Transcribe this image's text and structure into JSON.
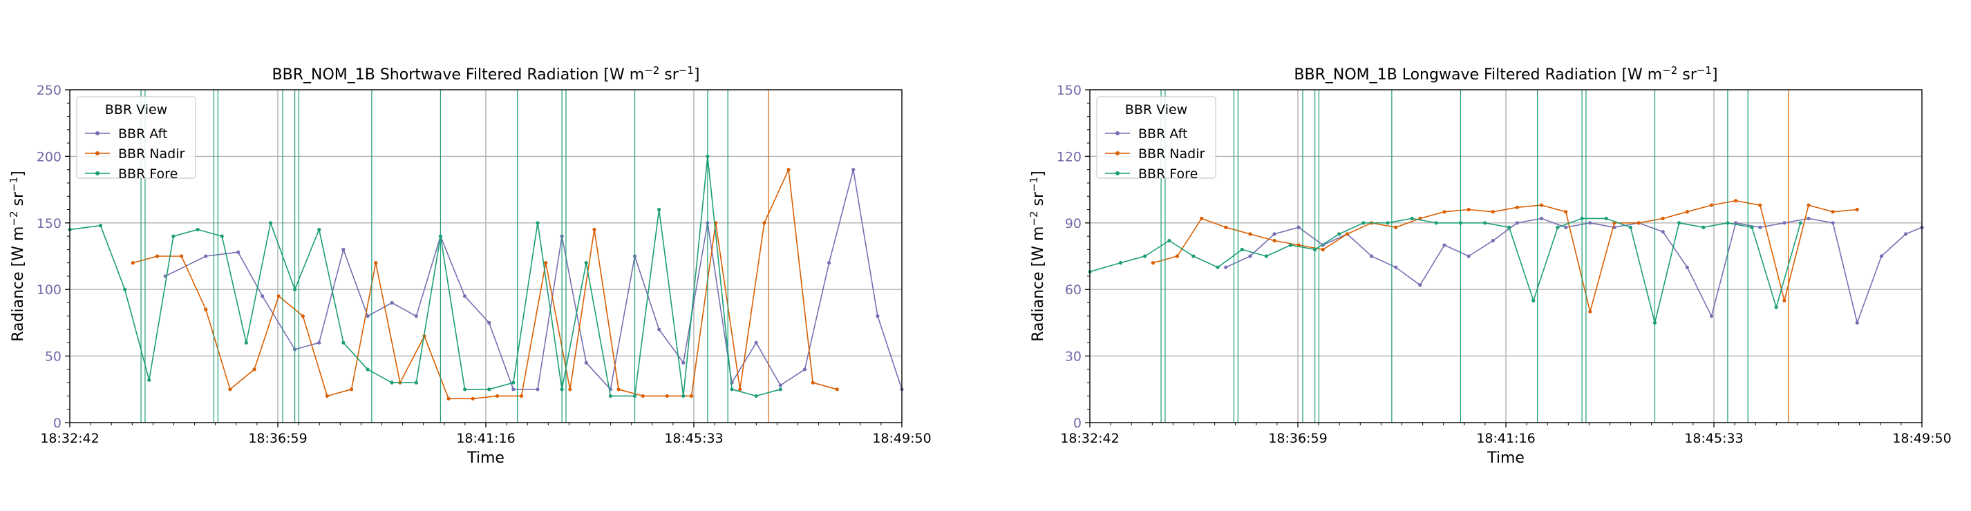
{
  "chart_data": [
    {
      "type": "line",
      "title_main": "BBR_NOM_1B Shortwave Filtered Radiation [W m",
      "title_sup1": "−2",
      "title_mid": " sr",
      "title_sup2": "−1",
      "title_end": "]",
      "xlabel": "Time",
      "ylabel_main": "Radiance [W m",
      "ylabel_sup1": "−2",
      "ylabel_mid": " sr",
      "ylabel_sup2": "−1",
      "ylabel_end": "]",
      "xlim": [
        "18:32:42",
        "18:49:50"
      ],
      "x_tick_labels": [
        "18:32:42",
        "18:36:59",
        "18:41:16",
        "18:45:33",
        "18:49:50"
      ],
      "ylim": [
        0,
        250
      ],
      "y_ticks": [
        0,
        50,
        100,
        150,
        200,
        250
      ],
      "grid": true,
      "legend": {
        "title": "BBR View",
        "placement": "top-left"
      },
      "series": [
        {
          "name": "BBR Aft",
          "color": "#7570b3",
          "x": [
            "18:34:40",
            "18:35:30",
            "18:36:10",
            "18:36:40",
            "18:37:20",
            "18:37:50",
            "18:38:20",
            "18:38:50",
            "18:39:20",
            "18:39:50",
            "18:40:20",
            "18:40:50",
            "18:41:20",
            "18:41:50",
            "18:42:20",
            "18:42:50",
            "18:43:20",
            "18:43:50",
            "18:44:20",
            "18:44:50",
            "18:45:20",
            "18:45:50",
            "18:46:20",
            "18:46:50",
            "18:47:20",
            "18:47:50",
            "18:48:20",
            "18:48:50",
            "18:49:20",
            "18:49:50"
          ],
          "values": [
            110,
            125,
            128,
            95,
            55,
            60,
            130,
            80,
            90,
            80,
            140,
            95,
            75,
            25,
            25,
            140,
            45,
            25,
            125,
            70,
            45,
            150,
            30,
            60,
            28,
            40,
            120,
            190,
            80,
            25
          ],
          "spikes": []
        },
        {
          "name": "BBR Nadir",
          "color": "#d95f02",
          "x": [
            "18:34:00",
            "18:34:30",
            "18:35:00",
            "18:35:30",
            "18:36:00",
            "18:36:30",
            "18:37:00",
            "18:37:30",
            "18:38:00",
            "18:38:30",
            "18:39:00",
            "18:39:30",
            "18:40:00",
            "18:40:30",
            "18:41:00",
            "18:41:30",
            "18:42:00",
            "18:42:30",
            "18:43:00",
            "18:43:30",
            "18:44:00",
            "18:44:30",
            "18:45:00",
            "18:45:30",
            "18:46:00",
            "18:46:30",
            "18:47:00",
            "18:47:30",
            "18:48:00",
            "18:48:30"
          ],
          "values": [
            120,
            125,
            125,
            85,
            25,
            40,
            95,
            80,
            20,
            25,
            120,
            30,
            65,
            18,
            18,
            20,
            20,
            120,
            25,
            145,
            25,
            20,
            20,
            20,
            150,
            25,
            150,
            190,
            30,
            25
          ],
          "spikes": [
            "18:47:05"
          ]
        },
        {
          "name": "BBR Fore",
          "color": "#1b9e77",
          "x": [
            "18:32:42",
            "18:33:20",
            "18:33:50",
            "18:34:20",
            "18:34:50",
            "18:35:20",
            "18:35:50",
            "18:36:20",
            "18:36:50",
            "18:37:20",
            "18:37:50",
            "18:38:20",
            "18:38:50",
            "18:39:20",
            "18:39:50",
            "18:40:20",
            "18:40:50",
            "18:41:20",
            "18:41:50",
            "18:42:20",
            "18:42:50",
            "18:43:20",
            "18:43:50",
            "18:44:20",
            "18:44:50",
            "18:45:20",
            "18:45:50",
            "18:46:20",
            "18:46:50",
            "18:47:20"
          ],
          "values": [
            145,
            148,
            100,
            32,
            140,
            145,
            140,
            60,
            150,
            100,
            145,
            60,
            40,
            30,
            30,
            140,
            25,
            25,
            30,
            150,
            25,
            120,
            20,
            20,
            160,
            20,
            200,
            25,
            20,
            25
          ],
          "spikes": [
            "18:34:10",
            "18:34:15",
            "18:35:40",
            "18:35:45",
            "18:37:05",
            "18:37:20",
            "18:37:25",
            "18:38:55",
            "18:40:20",
            "18:41:55",
            "18:42:50",
            "18:42:55",
            "18:44:20",
            "18:45:50",
            "18:46:15"
          ]
        }
      ]
    },
    {
      "type": "line",
      "title_main": "BBR_NOM_1B Longwave Filtered Radiation [W m",
      "title_sup1": "−2",
      "title_mid": " sr",
      "title_sup2": "−1",
      "title_end": "]",
      "xlabel": "Time",
      "ylabel_main": "Radiance [W m",
      "ylabel_sup1": "−2",
      "ylabel_mid": " sr",
      "ylabel_sup2": "−1",
      "ylabel_end": "]",
      "xlim": [
        "18:32:42",
        "18:49:50"
      ],
      "x_tick_labels": [
        "18:32:42",
        "18:36:59",
        "18:41:16",
        "18:45:33",
        "18:49:50"
      ],
      "ylim": [
        0,
        150
      ],
      "y_ticks": [
        0,
        30,
        60,
        90,
        120,
        150
      ],
      "grid": true,
      "legend": {
        "title": "BBR View",
        "placement": "top-left"
      },
      "series": [
        {
          "name": "BBR Aft",
          "color": "#7570b3",
          "x": [
            "18:35:30",
            "18:36:00",
            "18:36:30",
            "18:37:00",
            "18:37:30",
            "18:38:00",
            "18:38:30",
            "18:39:00",
            "18:39:30",
            "18:40:00",
            "18:40:30",
            "18:41:00",
            "18:41:30",
            "18:42:00",
            "18:42:30",
            "18:43:00",
            "18:43:30",
            "18:44:00",
            "18:44:30",
            "18:45:00",
            "18:45:30",
            "18:46:00",
            "18:46:30",
            "18:47:00",
            "18:47:30",
            "18:48:00",
            "18:48:30",
            "18:49:00",
            "18:49:30",
            "18:49:50"
          ],
          "values": [
            70,
            75,
            85,
            88,
            80,
            85,
            75,
            70,
            62,
            80,
            75,
            82,
            90,
            92,
            88,
            90,
            88,
            90,
            86,
            70,
            48,
            90,
            88,
            90,
            92,
            90,
            45,
            75,
            85,
            88
          ],
          "spikes": []
        },
        {
          "name": "BBR Nadir",
          "color": "#d95f02",
          "x": [
            "18:34:00",
            "18:34:30",
            "18:35:00",
            "18:35:30",
            "18:36:00",
            "18:36:30",
            "18:37:00",
            "18:37:30",
            "18:38:00",
            "18:38:30",
            "18:39:00",
            "18:39:30",
            "18:40:00",
            "18:40:30",
            "18:41:00",
            "18:41:30",
            "18:42:00",
            "18:42:30",
            "18:43:00",
            "18:43:30",
            "18:44:00",
            "18:44:30",
            "18:45:00",
            "18:45:30",
            "18:46:00",
            "18:46:30",
            "18:47:00",
            "18:47:30",
            "18:48:00",
            "18:48:30"
          ],
          "values": [
            72,
            75,
            92,
            88,
            85,
            82,
            80,
            78,
            85,
            90,
            88,
            92,
            95,
            96,
            95,
            97,
            98,
            95,
            50,
            90,
            90,
            92,
            95,
            98,
            100,
            98,
            55,
            98,
            95,
            96
          ],
          "spikes": [
            "18:47:05"
          ]
        },
        {
          "name": "BBR Fore",
          "color": "#1b9e77",
          "x": [
            "18:32:42",
            "18:33:20",
            "18:33:50",
            "18:34:20",
            "18:34:50",
            "18:35:20",
            "18:35:50",
            "18:36:20",
            "18:36:50",
            "18:37:20",
            "18:37:50",
            "18:38:20",
            "18:38:50",
            "18:39:20",
            "18:39:50",
            "18:40:20",
            "18:40:50",
            "18:41:20",
            "18:41:50",
            "18:42:20",
            "18:42:50",
            "18:43:20",
            "18:43:50",
            "18:44:20",
            "18:44:50",
            "18:45:20",
            "18:45:50",
            "18:46:20",
            "18:46:50",
            "18:47:20"
          ],
          "values": [
            68,
            72,
            75,
            82,
            75,
            70,
            78,
            75,
            80,
            78,
            85,
            90,
            90,
            92,
            90,
            90,
            90,
            88,
            55,
            88,
            92,
            92,
            88,
            45,
            90,
            88,
            90,
            88,
            52,
            90
          ],
          "spikes": [
            "18:34:10",
            "18:34:15",
            "18:35:40",
            "18:35:45",
            "18:37:05",
            "18:37:20",
            "18:37:25",
            "18:38:55",
            "18:40:20",
            "18:41:55",
            "18:42:50",
            "18:42:55",
            "18:44:20",
            "18:45:50",
            "18:46:15"
          ]
        }
      ]
    }
  ]
}
